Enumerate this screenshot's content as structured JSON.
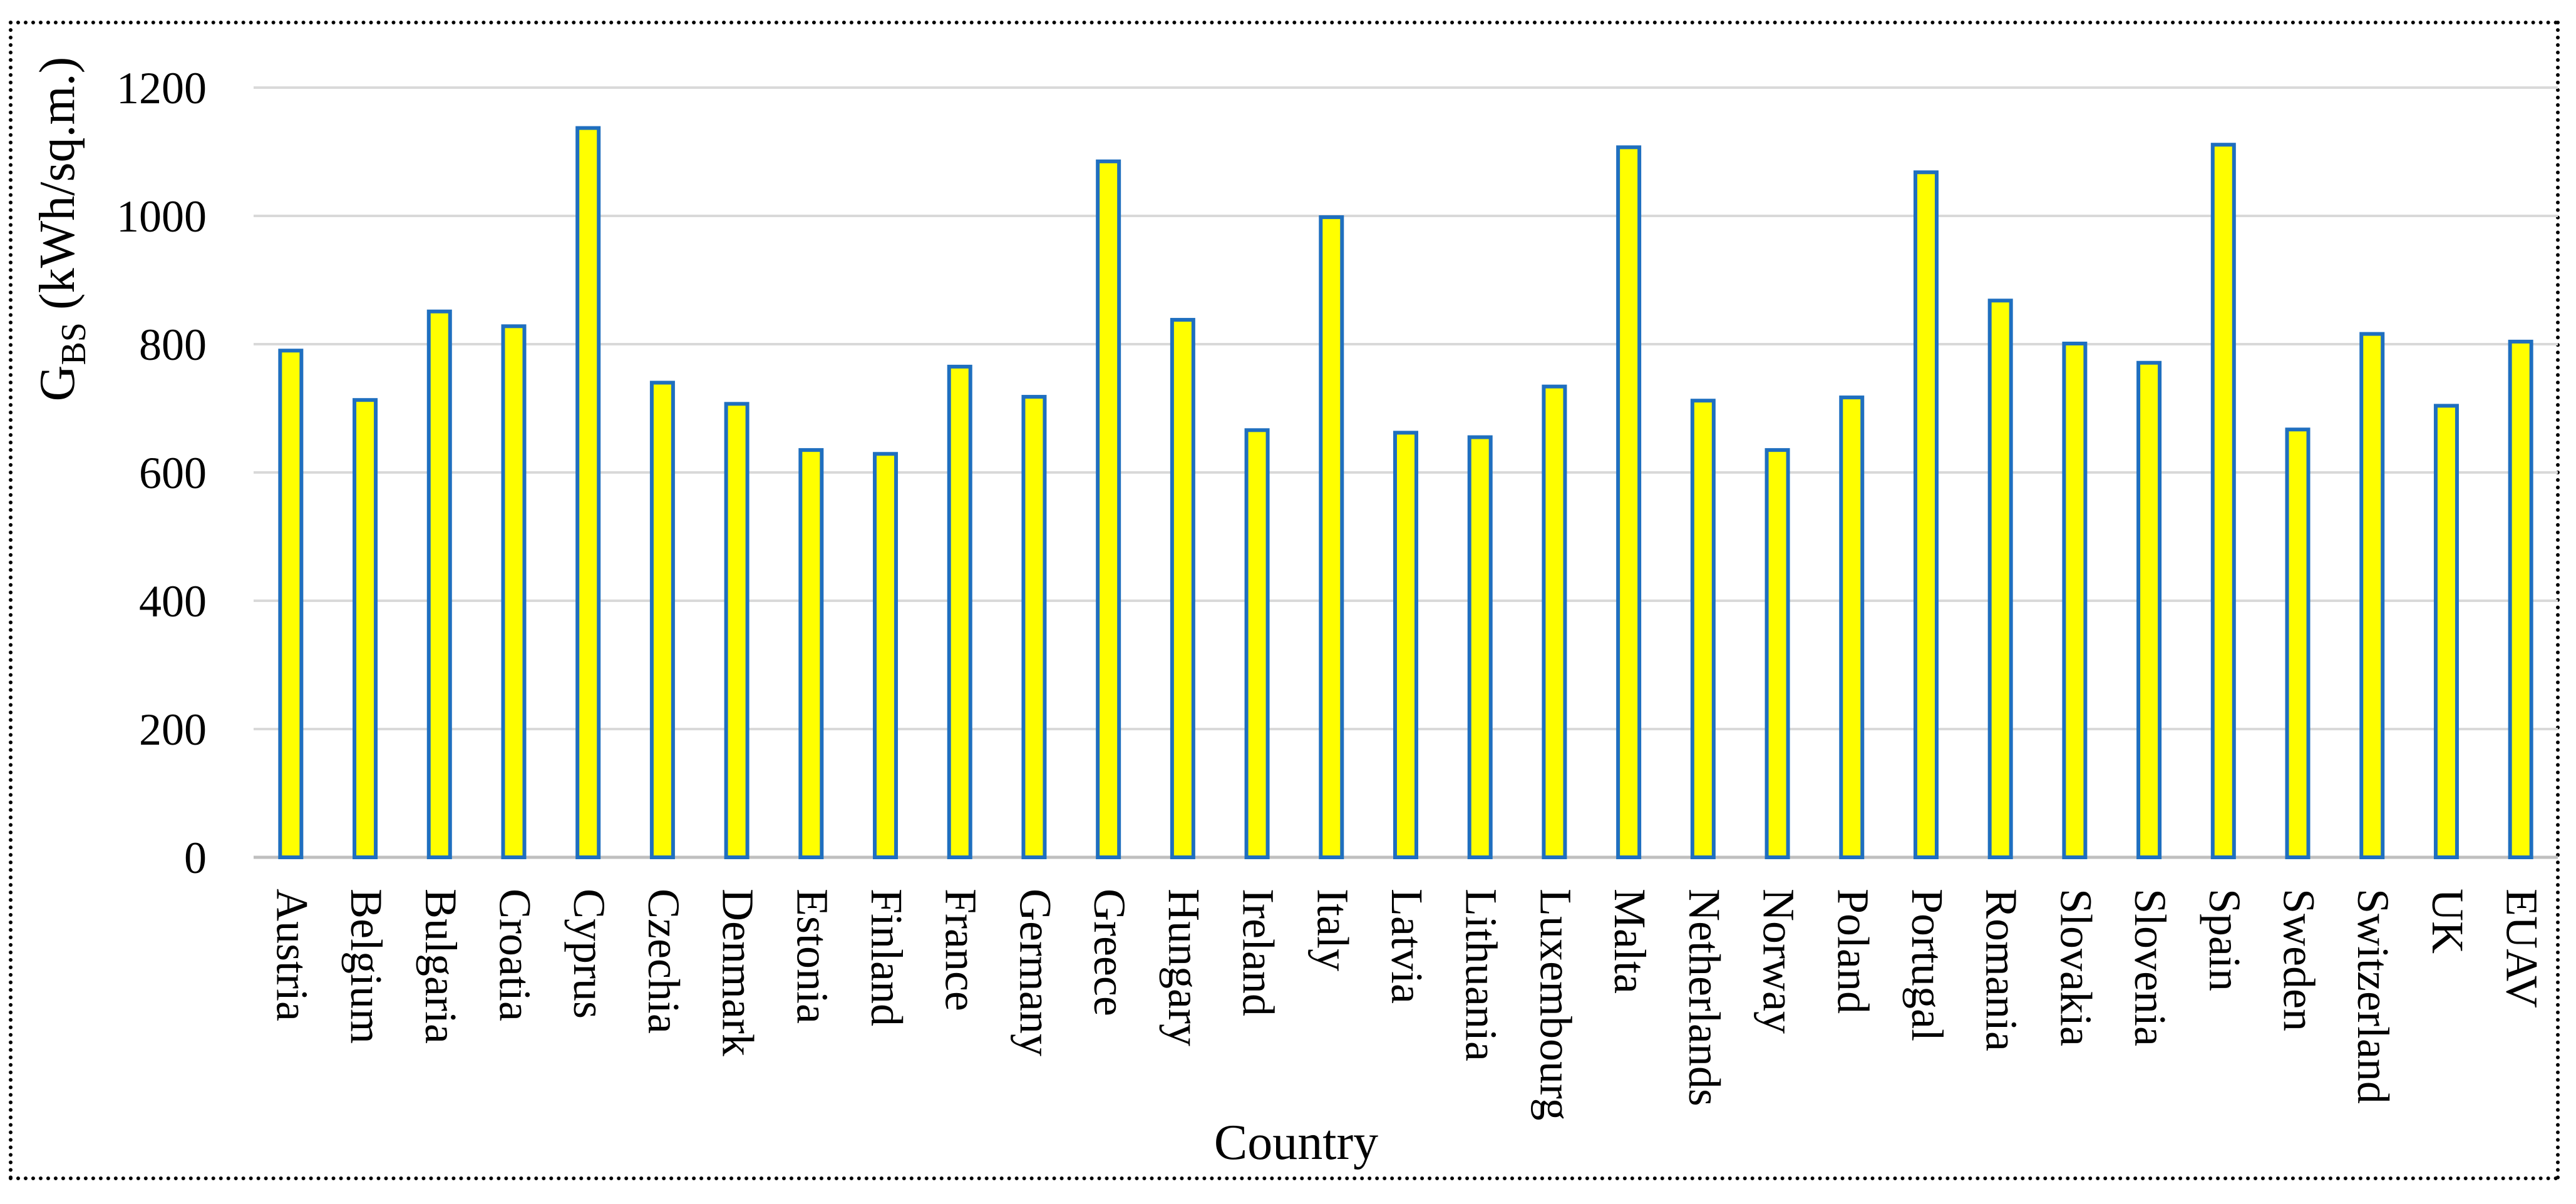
{
  "chart_data": {
    "type": "bar",
    "xlabel": "Country",
    "ylabel": {
      "main": "G",
      "sub": "BS",
      "rest": " (kWh/sq.m.)"
    },
    "ylim": [
      0,
      1200
    ],
    "yticks": [
      0,
      200,
      400,
      600,
      800,
      1000,
      1200
    ],
    "grid": true,
    "colors": {
      "bar_fill": "#ffff00",
      "bar_stroke": "#1f6fbf",
      "grid": "#d9d9d9"
    },
    "categories": [
      "Austria",
      "Belgium",
      "Bulgaria",
      "Croatia",
      "Cyprus",
      "Czechia",
      "Denmark",
      "Estonia",
      "Finland",
      "France",
      "Germany",
      "Greece",
      "Hungary",
      "Ireland",
      "Italy",
      "Latvia",
      "Lithuania",
      "Luxembourg",
      "Malta",
      "Netherlands",
      "Norway",
      "Poland",
      "Portugal",
      "Romania",
      "Slovakia",
      "Slovenia",
      "Spain",
      "Sweden",
      "Switzerland",
      "UK",
      "EUAV"
    ],
    "values": [
      790,
      713,
      851,
      828,
      1137,
      740,
      707,
      635,
      629,
      765,
      718,
      1085,
      838,
      666,
      998,
      662,
      655,
      734,
      1107,
      712,
      635,
      717,
      1068,
      868,
      801,
      771,
      1111,
      667,
      816,
      704,
      804
    ]
  }
}
